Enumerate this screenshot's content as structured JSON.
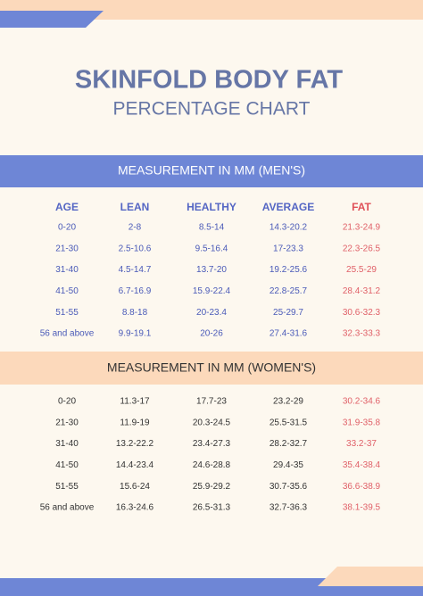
{
  "header": {
    "title": "SKINFOLD BODY FAT",
    "subtitle": "PERCENTAGE CHART"
  },
  "men": {
    "heading": "MEASUREMENT IN MM (MEN'S)",
    "columns": [
      "AGE",
      "LEAN",
      "HEALTHY",
      "AVERAGE",
      "FAT"
    ],
    "rows": [
      [
        "0-20",
        "2-8",
        "8.5-14",
        "14.3-20.2",
        "21.3-24.9"
      ],
      [
        "21-30",
        "2.5-10.6",
        "9.5-16.4",
        "17-23.3",
        "22.3-26.5"
      ],
      [
        "31-40",
        "4.5-14.7",
        "13.7-20",
        "19.2-25.6",
        "25.5-29"
      ],
      [
        "41-50",
        "6.7-16.9",
        "15.9-22.4",
        "22.8-25.7",
        "28.4-31.2"
      ],
      [
        "51-55",
        "8.8-18",
        "20-23.4",
        "25-29.7",
        "30.6-32.3"
      ],
      [
        "56 and above",
        "9.9-19.1",
        "20-26",
        "27.4-31.6",
        "32.3-33.3"
      ]
    ]
  },
  "women": {
    "heading": "MEASUREMENT IN MM (WOMEN'S)",
    "rows": [
      [
        "0-20",
        "11.3-17",
        "17.7-23",
        "23.2-29",
        "30.2-34.6"
      ],
      [
        "21-30",
        "11.9-19",
        "20.3-24.5",
        "25.5-31.5",
        "31.9-35.8"
      ],
      [
        "31-40",
        "13.2-22.2",
        "23.4-27.3",
        "28.2-32.7",
        "33.2-37"
      ],
      [
        "41-50",
        "14.4-23.4",
        "24.6-28.8",
        "29.4-35",
        "35.4-38.4"
      ],
      [
        "51-55",
        "15.6-24",
        "25.9-29.2",
        "30.7-35.6",
        "36.6-38.9"
      ],
      [
        "56 and above",
        "16.3-24.6",
        "26.5-31.3",
        "32.7-36.3",
        "38.1-39.5"
      ]
    ]
  }
}
